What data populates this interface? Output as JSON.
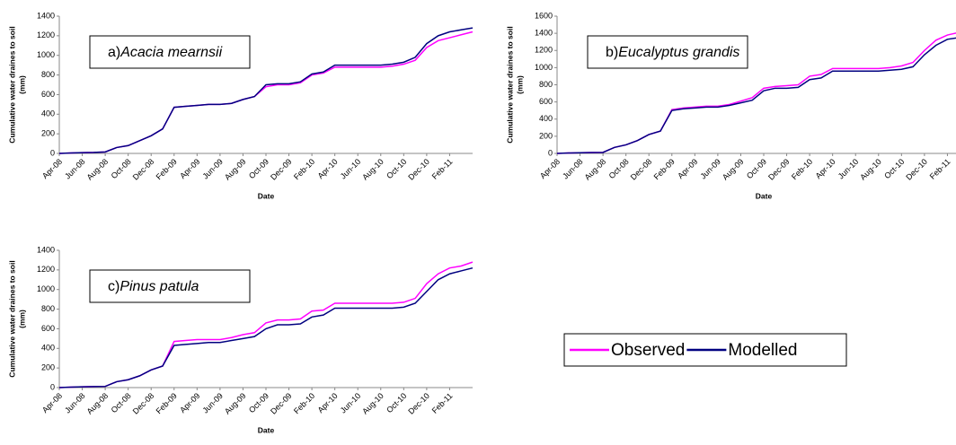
{
  "chart_data": [
    {
      "type": "line",
      "panel": "a)",
      "title": "Acacia mearnsii",
      "xlabel": "Date",
      "ylabel": [
        "Cumulative water draines to soil",
        "(mm)"
      ],
      "categories": [
        "Apr-08",
        null,
        "Jun-08",
        null,
        "Aug-08",
        null,
        "Oct-08",
        null,
        "Dec-08",
        null,
        "Feb-09",
        null,
        "Apr-09",
        null,
        "Jun-09",
        null,
        "Aug-09",
        null,
        "Oct-09",
        null,
        "Dec-09",
        null,
        "Feb-10",
        null,
        "Apr-10",
        null,
        "Jun-10",
        null,
        "Aug-10",
        null,
        "Oct-10",
        null,
        "Dec-10",
        null,
        "Feb-11",
        null,
        null
      ],
      "ylim": [
        0,
        1400
      ],
      "yticks": [
        0,
        200,
        400,
        600,
        800,
        1000,
        1200,
        1400
      ],
      "series": [
        {
          "name": "Observed",
          "color": "#ff00ff",
          "values": [
            0,
            5,
            8,
            10,
            15,
            60,
            80,
            130,
            180,
            250,
            470,
            480,
            490,
            500,
            500,
            510,
            550,
            580,
            680,
            700,
            700,
            720,
            800,
            820,
            880,
            880,
            880,
            880,
            880,
            890,
            910,
            950,
            1080,
            1150,
            1180,
            1210,
            1240
          ]
        },
        {
          "name": "Modelled",
          "color": "#000080",
          "values": [
            0,
            5,
            8,
            10,
            15,
            60,
            80,
            130,
            180,
            250,
            470,
            480,
            490,
            500,
            500,
            510,
            550,
            580,
            700,
            710,
            710,
            730,
            810,
            830,
            900,
            900,
            900,
            900,
            900,
            910,
            930,
            980,
            1120,
            1200,
            1240,
            1260,
            1280
          ]
        }
      ]
    },
    {
      "type": "line",
      "panel": "b)",
      "title": "Eucalyptus grandis",
      "xlabel": "Date",
      "ylabel": [
        "Cumulative water draines to soil",
        "(mm)"
      ],
      "categories": [
        "Apr-08",
        null,
        "Jun-08",
        null,
        "Aug-08",
        null,
        "Oct-08",
        null,
        "Dec-08",
        null,
        "Feb-09",
        null,
        "Apr-09",
        null,
        "Jun-09",
        null,
        "Aug-09",
        null,
        "Oct-09",
        null,
        "Dec-09",
        null,
        "Feb-10",
        null,
        "Apr-10",
        null,
        "Jun-10",
        null,
        "Aug-10",
        null,
        "Oct-10",
        null,
        "Dec-10",
        null,
        "Feb-11",
        null,
        null
      ],
      "ylim": [
        0,
        1600
      ],
      "yticks": [
        0,
        200,
        400,
        600,
        800,
        1000,
        1200,
        1400,
        1600
      ],
      "series": [
        {
          "color": "#ff00ff",
          "values": [
            0,
            5,
            8,
            10,
            12,
            70,
            100,
            150,
            220,
            260,
            510,
            530,
            540,
            550,
            550,
            570,
            610,
            650,
            760,
            780,
            790,
            800,
            900,
            920,
            990,
            990,
            990,
            990,
            990,
            1000,
            1020,
            1060,
            1200,
            1320,
            1380,
            1410,
            1440
          ]
        },
        {
          "color": "#000080",
          "values": [
            0,
            5,
            8,
            10,
            12,
            70,
            100,
            150,
            220,
            260,
            500,
            520,
            530,
            540,
            540,
            560,
            590,
            620,
            730,
            760,
            760,
            770,
            860,
            880,
            960,
            960,
            960,
            960,
            960,
            970,
            980,
            1010,
            1150,
            1260,
            1330,
            1350,
            1370
          ]
        }
      ]
    },
    {
      "type": "line",
      "panel": "c)",
      "title": "Pinus patula",
      "xlabel": "Date",
      "ylabel": [
        "Cumulative water draines to soil",
        "(mm)"
      ],
      "categories": [
        "Apr-08",
        null,
        "Jun-08",
        null,
        "Aug-08",
        null,
        "Oct-08",
        null,
        "Dec-08",
        null,
        "Feb-09",
        null,
        "Apr-09",
        null,
        "Jun-09",
        null,
        "Aug-09",
        null,
        "Oct-09",
        null,
        "Dec-09",
        null,
        "Feb-10",
        null,
        "Apr-10",
        null,
        "Jun-10",
        null,
        "Aug-10",
        null,
        "Oct-10",
        null,
        "Dec-10",
        null,
        "Feb-11",
        null,
        null
      ],
      "ylim": [
        0,
        1400
      ],
      "yticks": [
        0,
        200,
        400,
        600,
        800,
        1000,
        1200,
        1400
      ],
      "series": [
        {
          "color": "#ff00ff",
          "values": [
            0,
            5,
            8,
            10,
            12,
            60,
            80,
            120,
            180,
            220,
            470,
            480,
            490,
            490,
            490,
            510,
            540,
            560,
            660,
            690,
            690,
            700,
            780,
            790,
            860,
            860,
            860,
            860,
            860,
            860,
            870,
            910,
            1060,
            1160,
            1220,
            1240,
            1280
          ]
        },
        {
          "color": "#000080",
          "values": [
            0,
            5,
            8,
            10,
            12,
            60,
            80,
            120,
            180,
            220,
            430,
            440,
            450,
            460,
            460,
            480,
            500,
            520,
            600,
            640,
            640,
            650,
            720,
            740,
            810,
            810,
            810,
            810,
            810,
            810,
            820,
            860,
            980,
            1100,
            1160,
            1190,
            1220
          ]
        }
      ]
    }
  ]
}
